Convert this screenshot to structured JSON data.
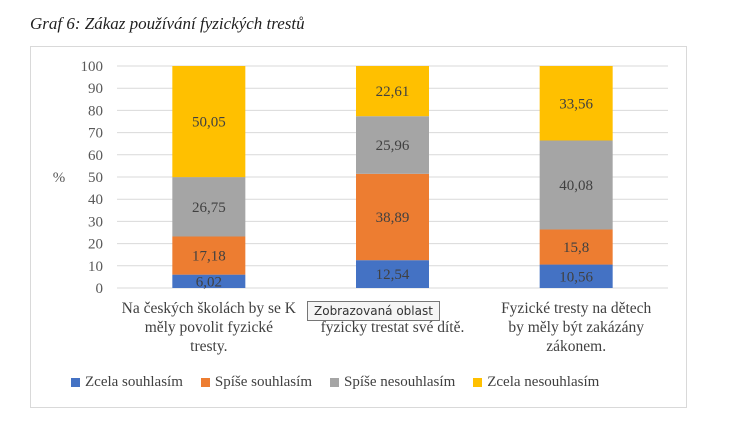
{
  "caption": "Graf 6: Zákaz používání fyzických trestů",
  "tooltip": "Zobrazovaná oblast",
  "colors": {
    "zcela_souhlasim": "#4472c4",
    "spise_souhlasim": "#ed7d31",
    "spise_nesouhlasim": "#a5a5a5",
    "zcela_nesouhlasim": "#ffc000"
  },
  "chart_data": {
    "type": "bar",
    "stacked": true,
    "title": "",
    "xlabel": "",
    "ylabel": "%",
    "ylim": [
      0,
      100
    ],
    "yticks": [
      0,
      10,
      20,
      30,
      40,
      50,
      60,
      70,
      80,
      90,
      100
    ],
    "grid": true,
    "legend_position": "bottom",
    "categories": [
      [
        "Na českých školách by se K",
        "měly povolit fyzické",
        "tresty."
      ],
      [
        "rávo",
        "fyzicky trestat své dítě."
      ],
      [
        "Fyzické tresty na dětech",
        "by měly být zakázány",
        "zákonem."
      ]
    ],
    "series": [
      {
        "name": "Zcela souhlasím",
        "values": [
          6.02,
          12.54,
          10.56
        ],
        "labels": [
          "6,02",
          "12,54",
          "10,56"
        ]
      },
      {
        "name": "Spíše souhlasím",
        "values": [
          17.18,
          38.89,
          15.8
        ],
        "labels": [
          "17,18",
          "38,89",
          "15,8"
        ]
      },
      {
        "name": "Spíše nesouhlasím",
        "values": [
          26.75,
          25.96,
          40.08
        ],
        "labels": [
          "26,75",
          "25,96",
          "40,08"
        ]
      },
      {
        "name": "Zcela nesouhlasím",
        "values": [
          50.05,
          22.61,
          33.56
        ],
        "labels": [
          "50,05",
          "22,61",
          "33,56"
        ]
      }
    ]
  }
}
